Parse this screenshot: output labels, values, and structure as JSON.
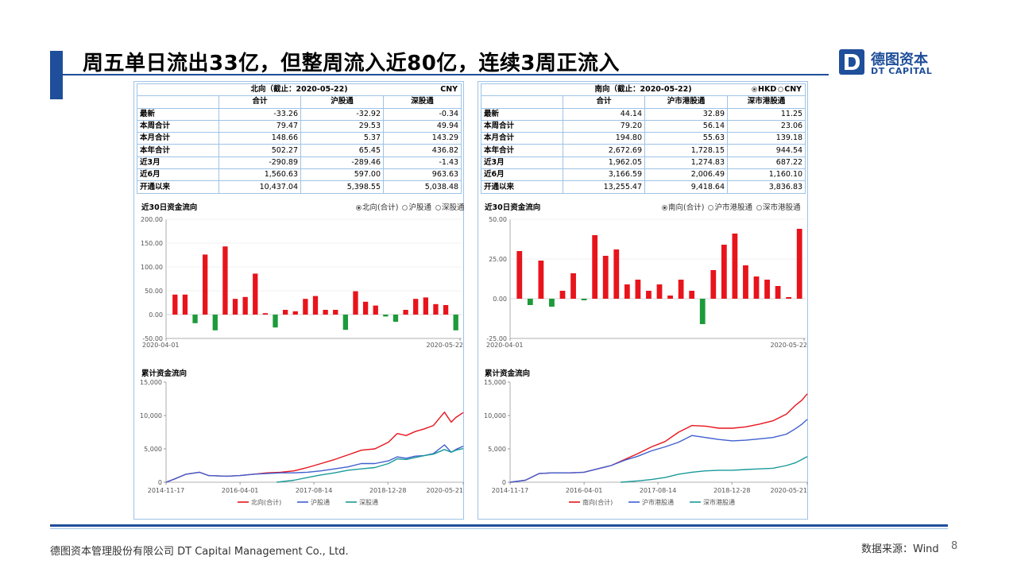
{
  "slide": {
    "title": "周五单日流出33亿，但整周流入近80亿，连续3周正流入",
    "logo_cn": "德图资本",
    "logo_en": "DT CAPITAL",
    "footer_company": "德图资本管理股份有限公司  DT Capital  Management  Co., Ltd.",
    "footer_source": "数据来源：Wind",
    "page_number": "8",
    "colors": {
      "brand": "#1f4e9a",
      "border": "#9ec3e6",
      "up": "#e8141c",
      "down": "#1d9a3a"
    }
  },
  "north": {
    "header": "北向（截止：2020-05-22)",
    "currency": "CNY",
    "columns": [
      "合计",
      "沪股通",
      "深股通"
    ],
    "rows": [
      {
        "label": "最新",
        "values": [
          "-33.26",
          "-32.92",
          "-0.34"
        ]
      },
      {
        "label": "本周合计",
        "values": [
          "79.47",
          "29.53",
          "49.94"
        ]
      },
      {
        "label": "本月合计",
        "values": [
          "148.66",
          "5.37",
          "143.29"
        ]
      },
      {
        "label": "本年合计",
        "values": [
          "502.27",
          "65.45",
          "436.82"
        ]
      },
      {
        "label": "近3月",
        "values": [
          "-290.89",
          "-289.46",
          "-1.43"
        ]
      },
      {
        "label": "近6月",
        "values": [
          "1,560.63",
          "597.00",
          "963.63"
        ]
      },
      {
        "label": "开通以来",
        "values": [
          "10,437.04",
          "5,398.55",
          "5,038.48"
        ]
      }
    ],
    "bar_title": "近30日资金流向",
    "bar_options": [
      "北向(合计)",
      "沪股通",
      "深股通"
    ],
    "cum_title": "累计资金流向",
    "cum_legend": [
      "北向(合计)",
      "沪股通",
      "深股通"
    ]
  },
  "south": {
    "header": "南向（截止：2020-05-22)",
    "currency_hkd": "HKD",
    "currency_cny": "CNY",
    "columns": [
      "合计",
      "沪市港股通",
      "深市港股通"
    ],
    "rows": [
      {
        "label": "最新",
        "values": [
          "44.14",
          "32.89",
          "11.25"
        ]
      },
      {
        "label": "本周合计",
        "values": [
          "79.20",
          "56.14",
          "23.06"
        ]
      },
      {
        "label": "本月合计",
        "values": [
          "194.80",
          "55.63",
          "139.18"
        ]
      },
      {
        "label": "本年合计",
        "values": [
          "2,672.69",
          "1,728.15",
          "944.54"
        ]
      },
      {
        "label": "近3月",
        "values": [
          "1,962.05",
          "1,274.83",
          "687.22"
        ]
      },
      {
        "label": "近6月",
        "values": [
          "3,166.59",
          "2,006.49",
          "1,160.10"
        ]
      },
      {
        "label": "开通以来",
        "values": [
          "13,255.47",
          "9,418.64",
          "3,836.83"
        ]
      }
    ],
    "bar_title": "近30日资金流向",
    "bar_options": [
      "南向(合计)",
      "沪市港股通",
      "深市港股通"
    ],
    "cum_title": "累计资金流向",
    "cum_legend": [
      "南向(合计)",
      "沪市港股通",
      "深市港股通"
    ]
  },
  "chart_data": [
    {
      "id": "north-bar",
      "type": "bar",
      "title": "近30日资金流向",
      "x_start": "2020-04-01",
      "x_end": "2020-05-22",
      "ylim": [
        -50,
        200
      ],
      "yticks": [
        "200.00",
        "150.00",
        "100.00",
        "50.00",
        "0.00",
        "-50.00"
      ],
      "ytick_values": [
        200,
        150,
        100,
        50,
        0,
        -50
      ],
      "values": [
        42,
        42,
        -18,
        126,
        -33,
        143,
        33,
        37,
        86,
        3,
        -27,
        10,
        7,
        33,
        39,
        10,
        10,
        -32,
        49,
        27,
        19,
        -4,
        -15,
        10,
        33,
        36,
        22,
        20,
        -33
      ]
    },
    {
      "id": "south-bar",
      "type": "bar",
      "title": "近30日资金流向",
      "x_start": "2020-04-01",
      "x_end": "2020-05-22",
      "ylim": [
        -25,
        50
      ],
      "yticks": [
        "50.00",
        "25.00",
        "0.00",
        "-25.00"
      ],
      "ytick_values": [
        50,
        25,
        0,
        -25
      ],
      "values": [
        30,
        -4,
        24,
        -5,
        5,
        16,
        -1,
        40,
        27,
        31,
        9,
        12,
        5,
        9,
        2,
        12,
        5,
        -16,
        18,
        34,
        41,
        21,
        14,
        12,
        8,
        1,
        44
      ]
    },
    {
      "id": "north-cum",
      "type": "line",
      "title": "累计资金流向",
      "xticks": [
        "2014-11-17",
        "2016-04-01",
        "2017-08-14",
        "2018-12-28",
        "2020-05-21"
      ],
      "x_start": "2014-11-17",
      "x_end": "2020-05-21",
      "ylim": [
        0,
        15000
      ],
      "yticks": [
        "15,000",
        "10,000",
        "5,000",
        "0"
      ],
      "ytick_values": [
        15000,
        10000,
        5000,
        0
      ],
      "series": [
        {
          "name": "北向(合计)",
          "color": "#e8141c",
          "x": [
            "2014-11-17",
            "2015-01-15",
            "2015-04-01",
            "2015-07-01",
            "2015-09-01",
            "2016-01-01",
            "2016-04-01",
            "2016-07-01",
            "2016-10-01",
            "2017-01-01",
            "2017-04-01",
            "2017-07-01",
            "2017-10-01",
            "2018-01-01",
            "2018-04-01",
            "2018-07-01",
            "2018-10-01",
            "2019-01-01",
            "2019-03-01",
            "2019-05-01",
            "2019-07-01",
            "2019-09-01",
            "2019-11-01",
            "2020-01-15",
            "2020-03-01",
            "2020-04-01",
            "2020-05-21"
          ],
          "y": [
            0,
            500,
            1200,
            1500,
            1000,
            900,
            1000,
            1200,
            1400,
            1500,
            1700,
            2200,
            2800,
            3400,
            4100,
            4800,
            5000,
            6000,
            7300,
            7000,
            7600,
            8000,
            8500,
            10500,
            9000,
            9700,
            10437
          ]
        },
        {
          "name": "沪股通",
          "color": "#3f5fd0",
          "x": [
            "2014-11-17",
            "2015-01-15",
            "2015-04-01",
            "2015-07-01",
            "2015-09-01",
            "2016-01-01",
            "2016-04-01",
            "2016-07-01",
            "2016-10-01",
            "2017-01-01",
            "2017-04-01",
            "2017-07-01",
            "2017-10-01",
            "2018-01-01",
            "2018-04-01",
            "2018-07-01",
            "2018-10-01",
            "2019-01-01",
            "2019-03-01",
            "2019-05-01",
            "2019-07-01",
            "2019-09-01",
            "2019-11-01",
            "2020-01-15",
            "2020-03-01",
            "2020-04-01",
            "2020-05-21"
          ],
          "y": [
            0,
            500,
            1200,
            1500,
            1000,
            900,
            1000,
            1200,
            1300,
            1400,
            1400,
            1500,
            1700,
            2000,
            2300,
            2800,
            2800,
            3200,
            3800,
            3600,
            3900,
            4000,
            4300,
            5600,
            4500,
            4900,
            5399
          ]
        },
        {
          "name": "深股通",
          "color": "#1a9a9a",
          "x": [
            "2016-12-05",
            "2017-04-01",
            "2017-07-01",
            "2017-10-01",
            "2018-01-01",
            "2018-04-01",
            "2018-07-01",
            "2018-10-01",
            "2019-01-01",
            "2019-03-01",
            "2019-05-01",
            "2019-07-01",
            "2019-09-01",
            "2019-11-01",
            "2020-01-15",
            "2020-03-01",
            "2020-04-01",
            "2020-05-21"
          ],
          "y": [
            0,
            300,
            700,
            1100,
            1400,
            1800,
            2000,
            2200,
            2800,
            3500,
            3400,
            3700,
            4000,
            4200,
            4900,
            4500,
            4800,
            5038
          ]
        }
      ]
    },
    {
      "id": "south-cum",
      "type": "line",
      "title": "累计资金流向",
      "xticks": [
        "2014-11-17",
        "2016-04-01",
        "2017-08-14",
        "2018-12-28",
        "2020-05-21"
      ],
      "x_start": "2014-11-17",
      "x_end": "2020-05-21",
      "ylim": [
        0,
        15000
      ],
      "yticks": [
        "15,000",
        "10,000",
        "5,000",
        "0"
      ],
      "ytick_values": [
        15000,
        10000,
        5000,
        0
      ],
      "series": [
        {
          "name": "南向(合计)",
          "color": "#e8141c",
          "x": [
            "2014-11-17",
            "2015-03-01",
            "2015-06-01",
            "2015-09-01",
            "2016-01-01",
            "2016-04-01",
            "2016-07-01",
            "2016-10-01",
            "2017-01-01",
            "2017-04-01",
            "2017-07-01",
            "2017-10-01",
            "2018-01-01",
            "2018-04-01",
            "2018-07-01",
            "2018-10-01",
            "2019-01-01",
            "2019-04-01",
            "2019-07-01",
            "2019-10-01",
            "2020-01-01",
            "2020-03-01",
            "2020-04-15",
            "2020-05-21"
          ],
          "y": [
            0,
            300,
            1300,
            1400,
            1400,
            1500,
            2000,
            2500,
            3400,
            4300,
            5300,
            6100,
            7500,
            8500,
            8400,
            8100,
            8100,
            8300,
            8700,
            9200,
            10200,
            11500,
            12300,
            13255
          ]
        },
        {
          "name": "沪市港股通",
          "color": "#3f5fd0",
          "x": [
            "2014-11-17",
            "2015-03-01",
            "2015-06-01",
            "2015-09-01",
            "2016-01-01",
            "2016-04-01",
            "2016-07-01",
            "2016-10-01",
            "2017-01-01",
            "2017-04-01",
            "2017-07-01",
            "2017-10-01",
            "2018-01-01",
            "2018-04-01",
            "2018-07-01",
            "2018-10-01",
            "2019-01-01",
            "2019-04-01",
            "2019-07-01",
            "2019-10-01",
            "2020-01-01",
            "2020-03-01",
            "2020-04-15",
            "2020-05-21"
          ],
          "y": [
            0,
            300,
            1300,
            1400,
            1400,
            1500,
            2000,
            2500,
            3300,
            3900,
            4700,
            5300,
            6000,
            7000,
            6700,
            6400,
            6200,
            6300,
            6500,
            6700,
            7200,
            8000,
            8700,
            9419
          ]
        },
        {
          "name": "深市港股通",
          "color": "#1a9a9a",
          "x": [
            "2016-12-05",
            "2017-04-01",
            "2017-07-01",
            "2017-10-01",
            "2018-01-01",
            "2018-04-01",
            "2018-07-01",
            "2018-10-01",
            "2019-01-01",
            "2019-04-01",
            "2019-07-01",
            "2019-10-01",
            "2020-01-01",
            "2020-03-01",
            "2020-04-15",
            "2020-05-21"
          ],
          "y": [
            0,
            200,
            400,
            700,
            1200,
            1500,
            1700,
            1800,
            1800,
            1900,
            2000,
            2100,
            2500,
            2900,
            3400,
            3837
          ]
        }
      ]
    }
  ]
}
